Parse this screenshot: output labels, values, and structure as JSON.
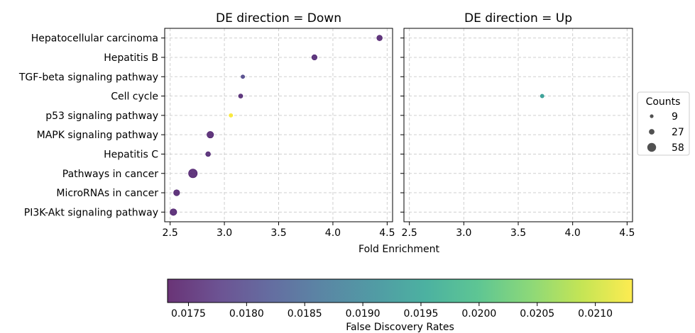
{
  "chart_data": {
    "type": "scatter",
    "xlabel": "Fold Enrichment",
    "xlim": [
      2.45,
      4.55
    ],
    "xticks": [
      "2.5",
      "3.0",
      "3.5",
      "4.0",
      "4.5"
    ],
    "xtick_values": [
      2.5,
      3.0,
      3.5,
      4.0,
      4.5
    ],
    "grid": true,
    "categories": [
      "Hepatocellular carcinoma",
      "Hepatitis B",
      "TGF-beta signaling pathway",
      "Cell cycle",
      "p53 signaling pathway",
      "MAPK signaling pathway",
      "Hepatitis C",
      "Pathways in cancer",
      "MicroRNAs in cancer",
      "PI3K-Akt signaling pathway"
    ],
    "panels": [
      {
        "title": "DE direction = Down",
        "points": [
          {
            "term": "Hepatocellular carcinoma",
            "fold_enrichment": 4.43,
            "count": 27,
            "fdr": 0.01755
          },
          {
            "term": "Hepatitis B",
            "fold_enrichment": 3.83,
            "count": 25,
            "fdr": 0.0176
          },
          {
            "term": "TGF-beta signaling pathway",
            "fold_enrichment": 3.17,
            "count": 9,
            "fdr": 0.018
          },
          {
            "term": "Cell cycle",
            "fold_enrichment": 3.15,
            "count": 15,
            "fdr": 0.0176
          },
          {
            "term": "p53 signaling pathway",
            "fold_enrichment": 3.06,
            "count": 9,
            "fdr": 0.0213
          },
          {
            "term": "MAPK signaling pathway",
            "fold_enrichment": 2.87,
            "count": 38,
            "fdr": 0.01755
          },
          {
            "term": "Hepatitis C",
            "fold_enrichment": 2.85,
            "count": 20,
            "fdr": 0.0176
          },
          {
            "term": "Pathways in cancer",
            "fold_enrichment": 2.71,
            "count": 58,
            "fdr": 0.01755
          },
          {
            "term": "MicroRNAs in cancer",
            "fold_enrichment": 2.56,
            "count": 32,
            "fdr": 0.01755
          },
          {
            "term": "PI3K-Akt signaling pathway",
            "fold_enrichment": 2.53,
            "count": 38,
            "fdr": 0.01755
          }
        ]
      },
      {
        "title": "DE direction = Up",
        "points": [
          {
            "term": "Cell cycle",
            "fold_enrichment": 3.72,
            "count": 9,
            "fdr": 0.0194
          }
        ]
      }
    ],
    "legend": {
      "title": "Counts",
      "placement": "right",
      "entries": [
        {
          "label": "9",
          "count": 9
        },
        {
          "label": "27",
          "count": 27
        },
        {
          "label": "58",
          "count": 58
        }
      ]
    },
    "colorbar": {
      "label": "False Discovery Rates",
      "min": 0.01732,
      "max": 0.02132,
      "ticks": [
        "0.0175",
        "0.0180",
        "0.0185",
        "0.0190",
        "0.0195",
        "0.0200",
        "0.0205",
        "0.0210"
      ],
      "tick_values": [
        0.0175,
        0.018,
        0.0185,
        0.019,
        0.0195,
        0.02,
        0.0205,
        0.021
      ],
      "colormap": [
        "#440154",
        "#482878",
        "#3e4989",
        "#31688e",
        "#26828e",
        "#1f9e89",
        "#35b779",
        "#6ece58",
        "#b5de2b",
        "#fde725"
      ]
    }
  }
}
